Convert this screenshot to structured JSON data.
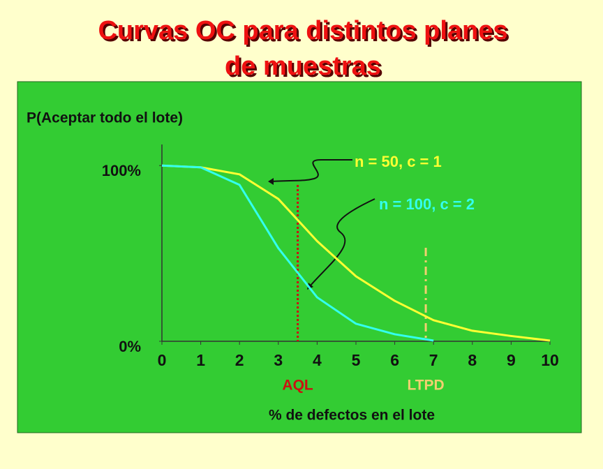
{
  "chart_data": {
    "type": "line",
    "title": [
      "Curvas OC para distintos planes",
      "de muestras"
    ],
    "y_label": "P(Aceptar todo el lote)",
    "x_label": "% de defectos en el lote",
    "x": [
      0,
      1,
      2,
      3,
      4,
      5,
      6,
      7,
      8,
      9,
      10
    ],
    "series": [
      {
        "name": "n = 50, c = 1",
        "color": "#ffff33",
        "values": [
          100,
          99,
          95,
          81,
          57,
          37,
          23,
          12,
          6,
          3,
          0.4
        ]
      },
      {
        "name": "n = 100, c = 2",
        "color": "#33ffee",
        "values": [
          100,
          99,
          89,
          53,
          25,
          10,
          4,
          0.4,
          null,
          null,
          null
        ]
      }
    ],
    "xlim": [
      0,
      10
    ],
    "xticks": [
      0,
      1,
      2,
      3,
      4,
      5,
      6,
      7,
      8,
      9,
      10
    ],
    "ylim": [
      0,
      112
    ],
    "yticks": [
      {
        "value": 0,
        "label": "0%"
      },
      {
        "value": 100,
        "label": "100%"
      }
    ],
    "reference_lines": [
      {
        "label": "AQL",
        "x": 3.5,
        "color": "#cc1111"
      },
      {
        "label": "LTPD",
        "x": 6.8,
        "color": "#f0d070"
      }
    ]
  }
}
